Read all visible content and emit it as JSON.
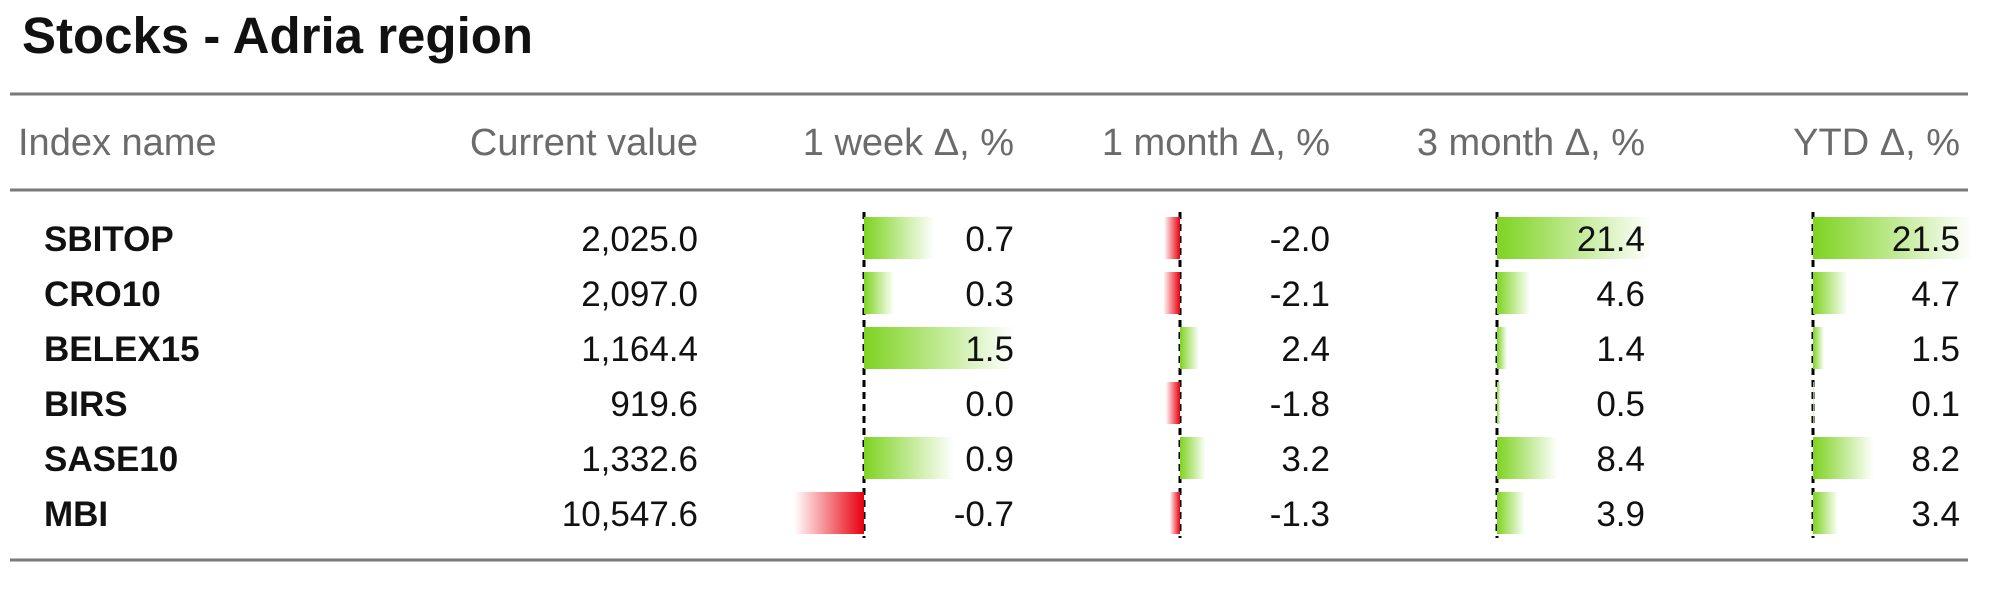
{
  "chart_data": {
    "type": "table",
    "title": "Stocks - Adria region",
    "columns": [
      "Index name",
      "Current value",
      "1 week Δ, %",
      "1 month Δ, %",
      "3 month Δ, %",
      "YTD Δ, %"
    ],
    "rows": [
      {
        "name": "SBITOP",
        "value": "2,025.0",
        "deltas": [
          "0.7",
          "-2.0",
          "21.4",
          "21.5"
        ]
      },
      {
        "name": "CRO10",
        "value": "2,097.0",
        "deltas": [
          "0.3",
          "-2.1",
          "4.6",
          "4.7"
        ]
      },
      {
        "name": "BELEX15",
        "value": "1,164.4",
        "deltas": [
          "1.5",
          "2.4",
          "1.4",
          "1.5"
        ]
      },
      {
        "name": "BIRS",
        "value": "919.6",
        "deltas": [
          "0.0",
          "-1.8",
          "0.5",
          "0.1"
        ]
      },
      {
        "name": "SASE10",
        "value": "1,332.6",
        "deltas": [
          "0.9",
          "3.2",
          "8.4",
          "8.2"
        ]
      },
      {
        "name": "MBI",
        "value": "10,547.6",
        "deltas": [
          "-0.7",
          "-1.3",
          "3.9",
          "3.4"
        ]
      }
    ],
    "colors": {
      "positive": "#7ed321",
      "negative": "#e8000f",
      "rule": "#7a7a7a",
      "zero_line": "#000000"
    }
  }
}
